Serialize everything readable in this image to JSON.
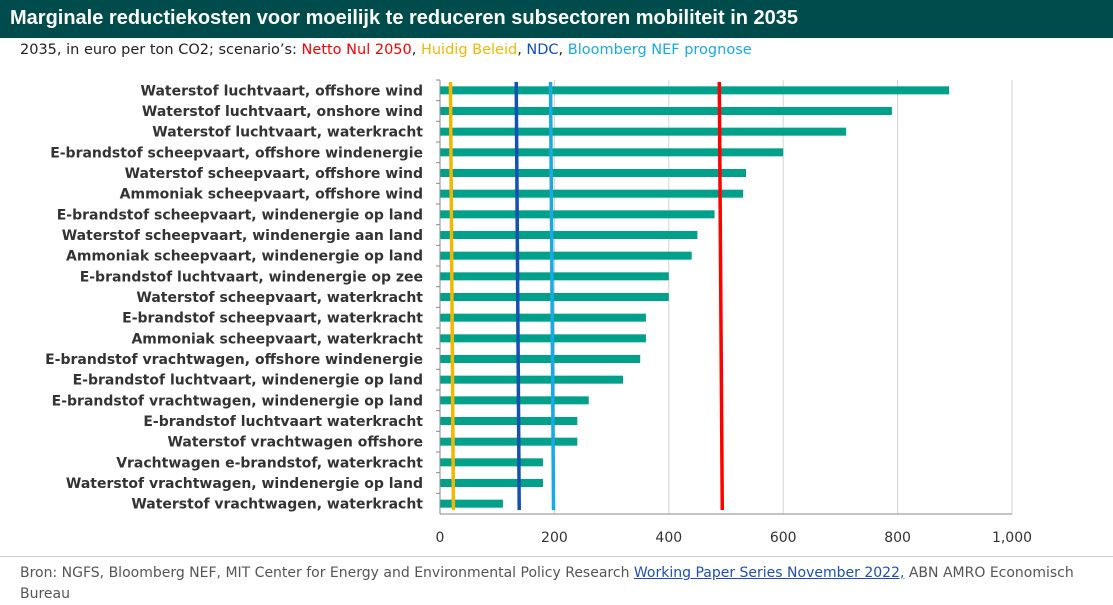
{
  "header": {
    "title": "Marginale reductiekosten voor moeilijk te reduceren subsectoren mobiliteit in 2035",
    "subtitle_prefix": "2035, in euro per ton CO2; scenario’s: ",
    "scenarios": [
      {
        "label": "Netto Nul 2050",
        "sep": ", ",
        "color": "#ff0000"
      },
      {
        "label": "Huidig Beleid",
        "sep": ", ",
        "color": "#f2b700"
      },
      {
        "label": "NDC",
        "sep": ", ",
        "color": "#1150b4"
      },
      {
        "label": "Bloomberg NEF prognose",
        "sep": "",
        "color": "#19a9e4"
      }
    ]
  },
  "footer": {
    "source_prefix": "Bron: NGFS, Bloomberg NEF, MIT Center for Energy and Environmental Policy Research ",
    "source_link": "Working Paper Series November 2022,",
    "source_suffix": " ABN AMRO Economisch Bureau"
  },
  "chart_data": {
    "type": "bar",
    "orientation": "horizontal",
    "categories": [
      "Waterstof luchtvaart, offshore wind",
      "Waterstof luchtvaart, onshore wind",
      "Waterstof luchtvaart, waterkracht",
      "E-brandstof scheepvaart, offshore windenergie",
      "Waterstof scheepvaart, offshore wind",
      "Ammoniak scheepvaart, offshore wind",
      "E-brandstof scheepvaart, windenergie op land",
      "Waterstof scheepvaart, windenergie aan land",
      "Ammoniak scheepvaart, windenergie op land",
      "E-brandstof luchtvaart, windenergie op zee",
      "Waterstof scheepvaart, waterkracht",
      "E-brandstof scheepvaart, waterkracht",
      "Ammoniak scheepvaart, waterkracht",
      "E-brandstof vrachtwagen, offshore windenergie",
      "E-brandstof luchtvaart, windenergie op land",
      "E-brandstof vrachtwagen, windenergie op land",
      "E-brandstof  luchtvaart waterkracht",
      "Waterstof vrachtwagen offshore",
      "Vrachtwagen e-brandstof, waterkracht",
      "Waterstof vrachtwagen, windenergie op land",
      "Waterstof vrachtwagen, waterkracht"
    ],
    "values": [
      890,
      790,
      710,
      600,
      535,
      530,
      480,
      450,
      440,
      400,
      400,
      360,
      360,
      350,
      320,
      260,
      240,
      240,
      180,
      180,
      110
    ],
    "bar_color": "#00a08a",
    "xlim": [
      0,
      1000
    ],
    "xticks": [
      0,
      200,
      400,
      600,
      800,
      1000
    ],
    "xtick_labels": [
      "0",
      "200",
      "400",
      "600",
      "800",
      "1,000"
    ],
    "grid": "vertical",
    "reference_lines": [
      {
        "name": "Netto Nul 2050",
        "value": 490,
        "color": "#ff0000"
      },
      {
        "name": "Huidig Beleid",
        "value": 20,
        "color": "#f2b700"
      },
      {
        "name": "NDC",
        "value": 135,
        "color": "#1150b4"
      },
      {
        "name": "Bloomberg NEF prognose",
        "value": 195,
        "color": "#19a9e4"
      }
    ]
  }
}
